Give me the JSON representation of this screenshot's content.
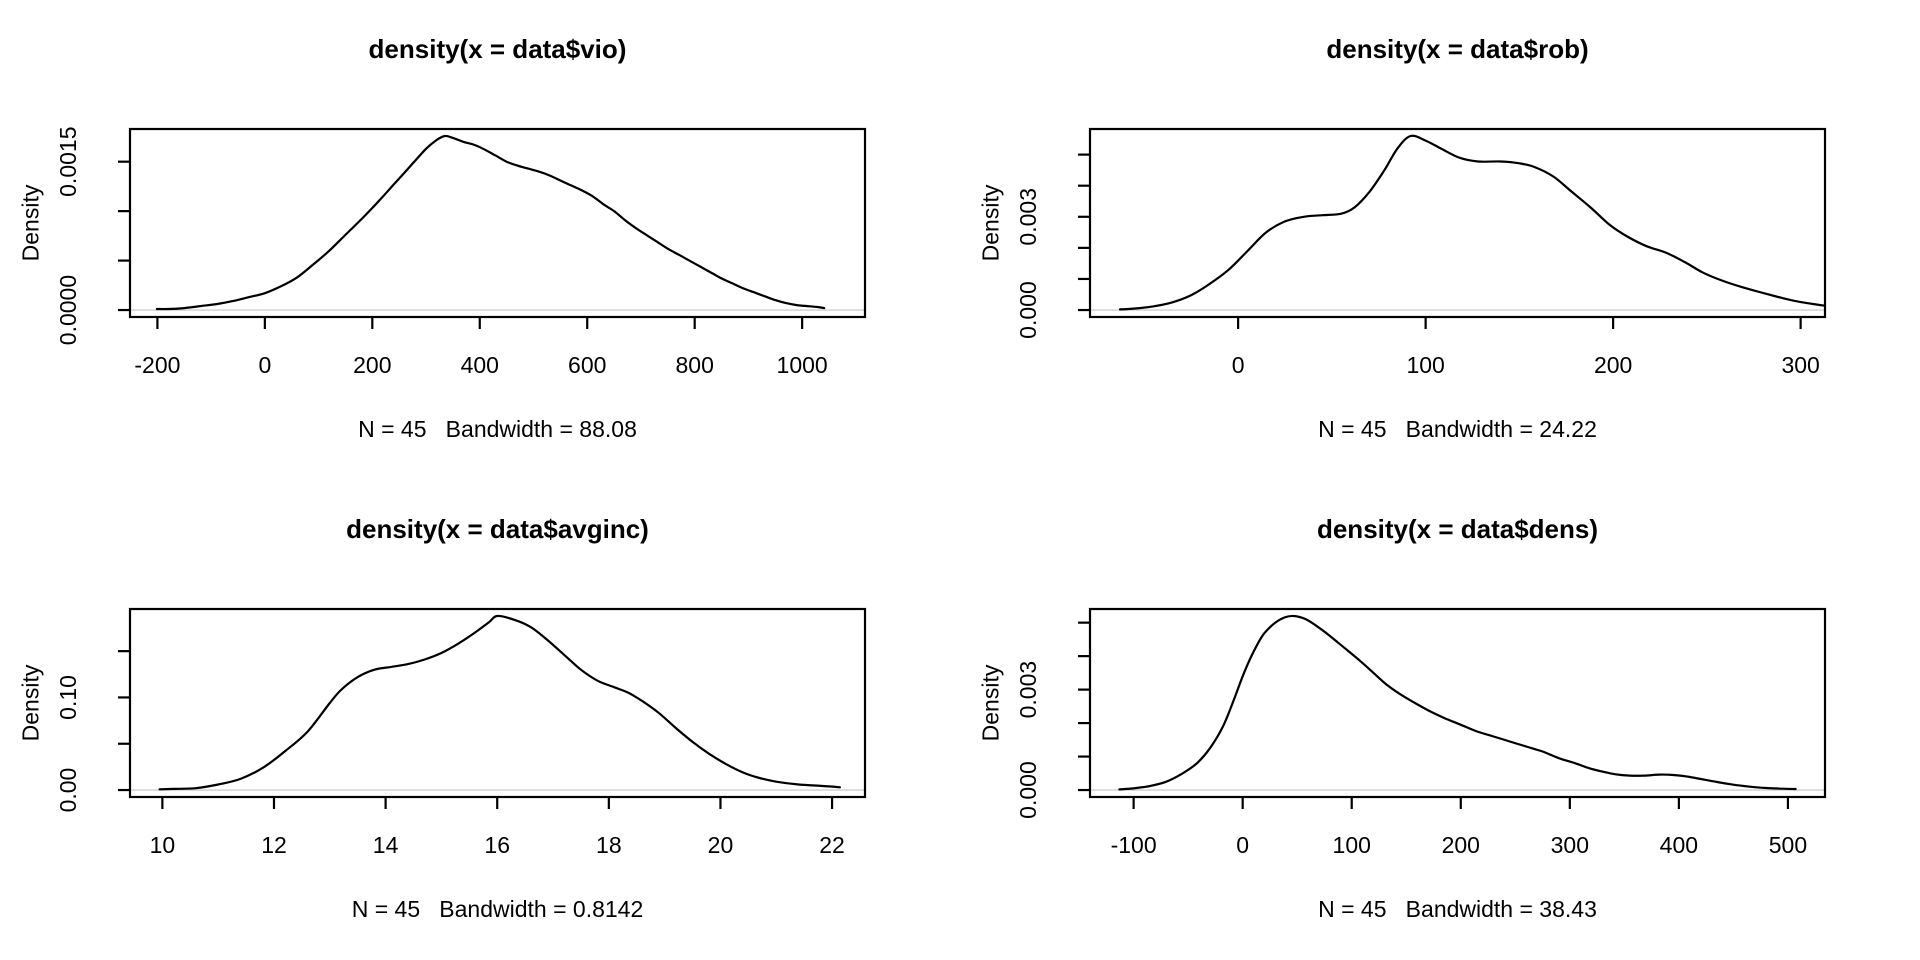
{
  "page": {
    "background": "#ffffff",
    "description": "R 2x2 grid (mfrow=c(2,2)) of kernel density plots"
  },
  "colors": {
    "curve": "#000000",
    "box": "#000000",
    "tick": "#000000",
    "zero_line": "#d6d6d6",
    "text": "#000000"
  },
  "chart_data": [
    {
      "type": "line",
      "id": "vio",
      "title": "density(x = data$vio)",
      "subtitle": "N = 45   Bandwidth = 88.08",
      "n": 45,
      "bandwidth": 88.08,
      "ylabel": "Density",
      "xlabel": "",
      "xlim": [
        -251,
        1117
      ],
      "ylim": [
        -7.04e-05,
        0.0018304
      ],
      "xticks": [
        -200,
        0,
        200,
        400,
        600,
        800,
        1000
      ],
      "xtick_labels": [
        "-200",
        "0",
        "200",
        "400",
        "600",
        "800",
        "1000"
      ],
      "yticks": [
        0,
        0.0005,
        0.001,
        0.0015
      ],
      "ytick_labels": [
        "0.0000",
        "",
        "",
        "0.0015"
      ],
      "grid": false,
      "legend": "none",
      "points": [
        [
          -201,
          1e-05
        ],
        [
          -180,
          1e-05
        ],
        [
          -150,
          2e-05
        ],
        [
          -120,
          4e-05
        ],
        [
          -90,
          6e-05
        ],
        [
          -60,
          9e-05
        ],
        [
          -30,
          0.00013
        ],
        [
          0,
          0.00017
        ],
        [
          30,
          0.00024
        ],
        [
          60,
          0.00033
        ],
        [
          90,
          0.00046
        ],
        [
          120,
          0.0006
        ],
        [
          150,
          0.00076
        ],
        [
          180,
          0.00092
        ],
        [
          210,
          0.00109
        ],
        [
          240,
          0.00127
        ],
        [
          270,
          0.00145
        ],
        [
          300,
          0.00163
        ],
        [
          320,
          0.00172
        ],
        [
          335,
          0.00176
        ],
        [
          350,
          0.00174
        ],
        [
          370,
          0.0017
        ],
        [
          390,
          0.00167
        ],
        [
          410,
          0.00162
        ],
        [
          430,
          0.00156
        ],
        [
          450,
          0.0015
        ],
        [
          470,
          0.00146
        ],
        [
          490,
          0.00143
        ],
        [
          510,
          0.0014
        ],
        [
          530,
          0.00136
        ],
        [
          550,
          0.00131
        ],
        [
          570,
          0.00126
        ],
        [
          590,
          0.00121
        ],
        [
          610,
          0.00115
        ],
        [
          630,
          0.00107
        ],
        [
          650,
          0.001
        ],
        [
          670,
          0.00091
        ],
        [
          690,
          0.00083
        ],
        [
          710,
          0.00076
        ],
        [
          730,
          0.00069
        ],
        [
          750,
          0.00062
        ],
        [
          770,
          0.00056
        ],
        [
          790,
          0.0005
        ],
        [
          810,
          0.00044
        ],
        [
          830,
          0.00038
        ],
        [
          850,
          0.00032
        ],
        [
          870,
          0.00027
        ],
        [
          890,
          0.00022
        ],
        [
          910,
          0.00018
        ],
        [
          930,
          0.00014
        ],
        [
          950,
          0.0001
        ],
        [
          970,
          7e-05
        ],
        [
          990,
          5e-05
        ],
        [
          1010,
          4e-05
        ],
        [
          1030,
          3e-05
        ],
        [
          1041,
          2e-05
        ]
      ]
    },
    {
      "type": "line",
      "id": "rob",
      "title": "density(x = data$rob)",
      "subtitle": "N = 45   Bandwidth = 24.22",
      "n": 45,
      "bandwidth": 24.22,
      "ylabel": "Density",
      "xlabel": "",
      "xlim": [
        -79,
        313
      ],
      "ylim": [
        -0.000224,
        0.005824
      ],
      "xticks": [
        0,
        100,
        200,
        300
      ],
      "xtick_labels": [
        "0",
        "100",
        "200",
        "300"
      ],
      "yticks": [
        0,
        0.001,
        0.002,
        0.003,
        0.004,
        0.005
      ],
      "ytick_labels": [
        "0.000",
        "",
        "",
        "0.003",
        "",
        ""
      ],
      "grid": false,
      "legend": "none",
      "points": [
        [
          -63,
          2e-05
        ],
        [
          -55,
          5e-05
        ],
        [
          -45,
          0.00012
        ],
        [
          -35,
          0.00025
        ],
        [
          -25,
          0.00048
        ],
        [
          -15,
          0.00085
        ],
        [
          -5,
          0.0013
        ],
        [
          5,
          0.0019
        ],
        [
          15,
          0.0025
        ],
        [
          25,
          0.00285
        ],
        [
          35,
          0.003
        ],
        [
          45,
          0.00305
        ],
        [
          55,
          0.0031
        ],
        [
          62,
          0.0033
        ],
        [
          70,
          0.0038
        ],
        [
          78,
          0.0045
        ],
        [
          85,
          0.0052
        ],
        [
          92,
          0.0056
        ],
        [
          100,
          0.00545
        ],
        [
          108,
          0.0052
        ],
        [
          118,
          0.0049
        ],
        [
          128,
          0.00478
        ],
        [
          140,
          0.00478
        ],
        [
          150,
          0.00472
        ],
        [
          158,
          0.0046
        ],
        [
          168,
          0.0043
        ],
        [
          178,
          0.0038
        ],
        [
          188,
          0.0033
        ],
        [
          198,
          0.00275
        ],
        [
          208,
          0.00235
        ],
        [
          218,
          0.00205
        ],
        [
          228,
          0.00185
        ],
        [
          238,
          0.00155
        ],
        [
          248,
          0.0012
        ],
        [
          258,
          0.00095
        ],
        [
          268,
          0.00075
        ],
        [
          278,
          0.00058
        ],
        [
          288,
          0.00042
        ],
        [
          298,
          0.00028
        ],
        [
          308,
          0.00018
        ],
        [
          313,
          0.00014
        ]
      ]
    },
    {
      "type": "line",
      "id": "avginc",
      "title": "density(x = data$avginc)",
      "subtitle": "N = 45   Bandwidth = 0.8142",
      "n": 45,
      "bandwidth": 0.8142,
      "ylabel": "Density",
      "xlabel": "",
      "xlim": [
        9.42,
        22.59
      ],
      "ylim": [
        -0.00752,
        0.19552
      ],
      "xticks": [
        10,
        12,
        14,
        16,
        18,
        20,
        22
      ],
      "xtick_labels": [
        "10",
        "12",
        "14",
        "16",
        "18",
        "20",
        "22"
      ],
      "yticks": [
        0,
        0.05,
        0.1,
        0.15
      ],
      "ytick_labels": [
        "0.00",
        "",
        "0.10",
        ""
      ],
      "grid": false,
      "legend": "none",
      "points": [
        [
          9.95,
          0.0008
        ],
        [
          10.2,
          0.0012
        ],
        [
          10.6,
          0.002
        ],
        [
          11.0,
          0.006
        ],
        [
          11.4,
          0.012
        ],
        [
          11.8,
          0.024
        ],
        [
          12.2,
          0.042
        ],
        [
          12.6,
          0.063
        ],
        [
          13.0,
          0.094
        ],
        [
          13.2,
          0.108
        ],
        [
          13.5,
          0.122
        ],
        [
          13.8,
          0.13
        ],
        [
          14.1,
          0.133
        ],
        [
          14.4,
          0.136
        ],
        [
          14.7,
          0.141
        ],
        [
          15.0,
          0.148
        ],
        [
          15.3,
          0.158
        ],
        [
          15.6,
          0.17
        ],
        [
          15.85,
          0.181
        ],
        [
          16.0,
          0.188
        ],
        [
          16.3,
          0.184
        ],
        [
          16.6,
          0.176
        ],
        [
          16.9,
          0.162
        ],
        [
          17.2,
          0.146
        ],
        [
          17.5,
          0.13
        ],
        [
          17.8,
          0.118
        ],
        [
          18.1,
          0.111
        ],
        [
          18.35,
          0.105
        ],
        [
          18.6,
          0.096
        ],
        [
          18.9,
          0.083
        ],
        [
          19.2,
          0.067
        ],
        [
          19.5,
          0.052
        ],
        [
          19.8,
          0.039
        ],
        [
          20.1,
          0.028
        ],
        [
          20.4,
          0.019
        ],
        [
          20.7,
          0.013
        ],
        [
          21.0,
          0.009
        ],
        [
          21.4,
          0.006
        ],
        [
          21.8,
          0.0045
        ],
        [
          22.14,
          0.003
        ]
      ]
    },
    {
      "type": "line",
      "id": "dens",
      "title": "density(x = data$dens)",
      "subtitle": "N = 45   Bandwidth = 38.43",
      "n": 45,
      "bandwidth": 38.43,
      "ylabel": "Density",
      "xlabel": "",
      "xlim": [
        -140,
        534
      ],
      "ylim": [
        -0.000208,
        0.005408
      ],
      "xticks": [
        -100,
        0,
        100,
        200,
        300,
        400,
        500
      ],
      "xtick_labels": [
        "-100",
        "0",
        "100",
        "200",
        "300",
        "400",
        "500"
      ],
      "yticks": [
        0,
        0.001,
        0.002,
        0.003,
        0.004,
        0.005
      ],
      "ytick_labels": [
        "0.000",
        "",
        "",
        "0.003",
        "",
        ""
      ],
      "grid": false,
      "legend": "none",
      "points": [
        [
          -113,
          2e-05
        ],
        [
          -100,
          5e-05
        ],
        [
          -85,
          0.00012
        ],
        [
          -70,
          0.00025
        ],
        [
          -55,
          0.0005
        ],
        [
          -42,
          0.0008
        ],
        [
          -30,
          0.00125
        ],
        [
          -18,
          0.0019
        ],
        [
          -8,
          0.0027
        ],
        [
          0,
          0.0034
        ],
        [
          8,
          0.004
        ],
        [
          18,
          0.0046
        ],
        [
          28,
          0.00495
        ],
        [
          38,
          0.00515
        ],
        [
          47,
          0.0052
        ],
        [
          58,
          0.0051
        ],
        [
          70,
          0.00485
        ],
        [
          82,
          0.00455
        ],
        [
          95,
          0.0042
        ],
        [
          108,
          0.00385
        ],
        [
          120,
          0.0035
        ],
        [
          132,
          0.00315
        ],
        [
          145,
          0.00285
        ],
        [
          158,
          0.0026
        ],
        [
          172,
          0.00235
        ],
        [
          185,
          0.00215
        ],
        [
          200,
          0.00195
        ],
        [
          215,
          0.00175
        ],
        [
          230,
          0.0016
        ],
        [
          245,
          0.00145
        ],
        [
          260,
          0.0013
        ],
        [
          275,
          0.00115
        ],
        [
          290,
          0.00095
        ],
        [
          305,
          0.0008
        ],
        [
          318,
          0.00065
        ],
        [
          330,
          0.00055
        ],
        [
          342,
          0.00047
        ],
        [
          355,
          0.00043
        ],
        [
          368,
          0.00043
        ],
        [
          382,
          0.00046
        ],
        [
          395,
          0.00045
        ],
        [
          408,
          0.0004
        ],
        [
          420,
          0.00033
        ],
        [
          435,
          0.00024
        ],
        [
          450,
          0.00016
        ],
        [
          465,
          0.0001
        ],
        [
          480,
          6e-05
        ],
        [
          495,
          4e-05
        ],
        [
          507,
          3e-05
        ]
      ]
    }
  ]
}
